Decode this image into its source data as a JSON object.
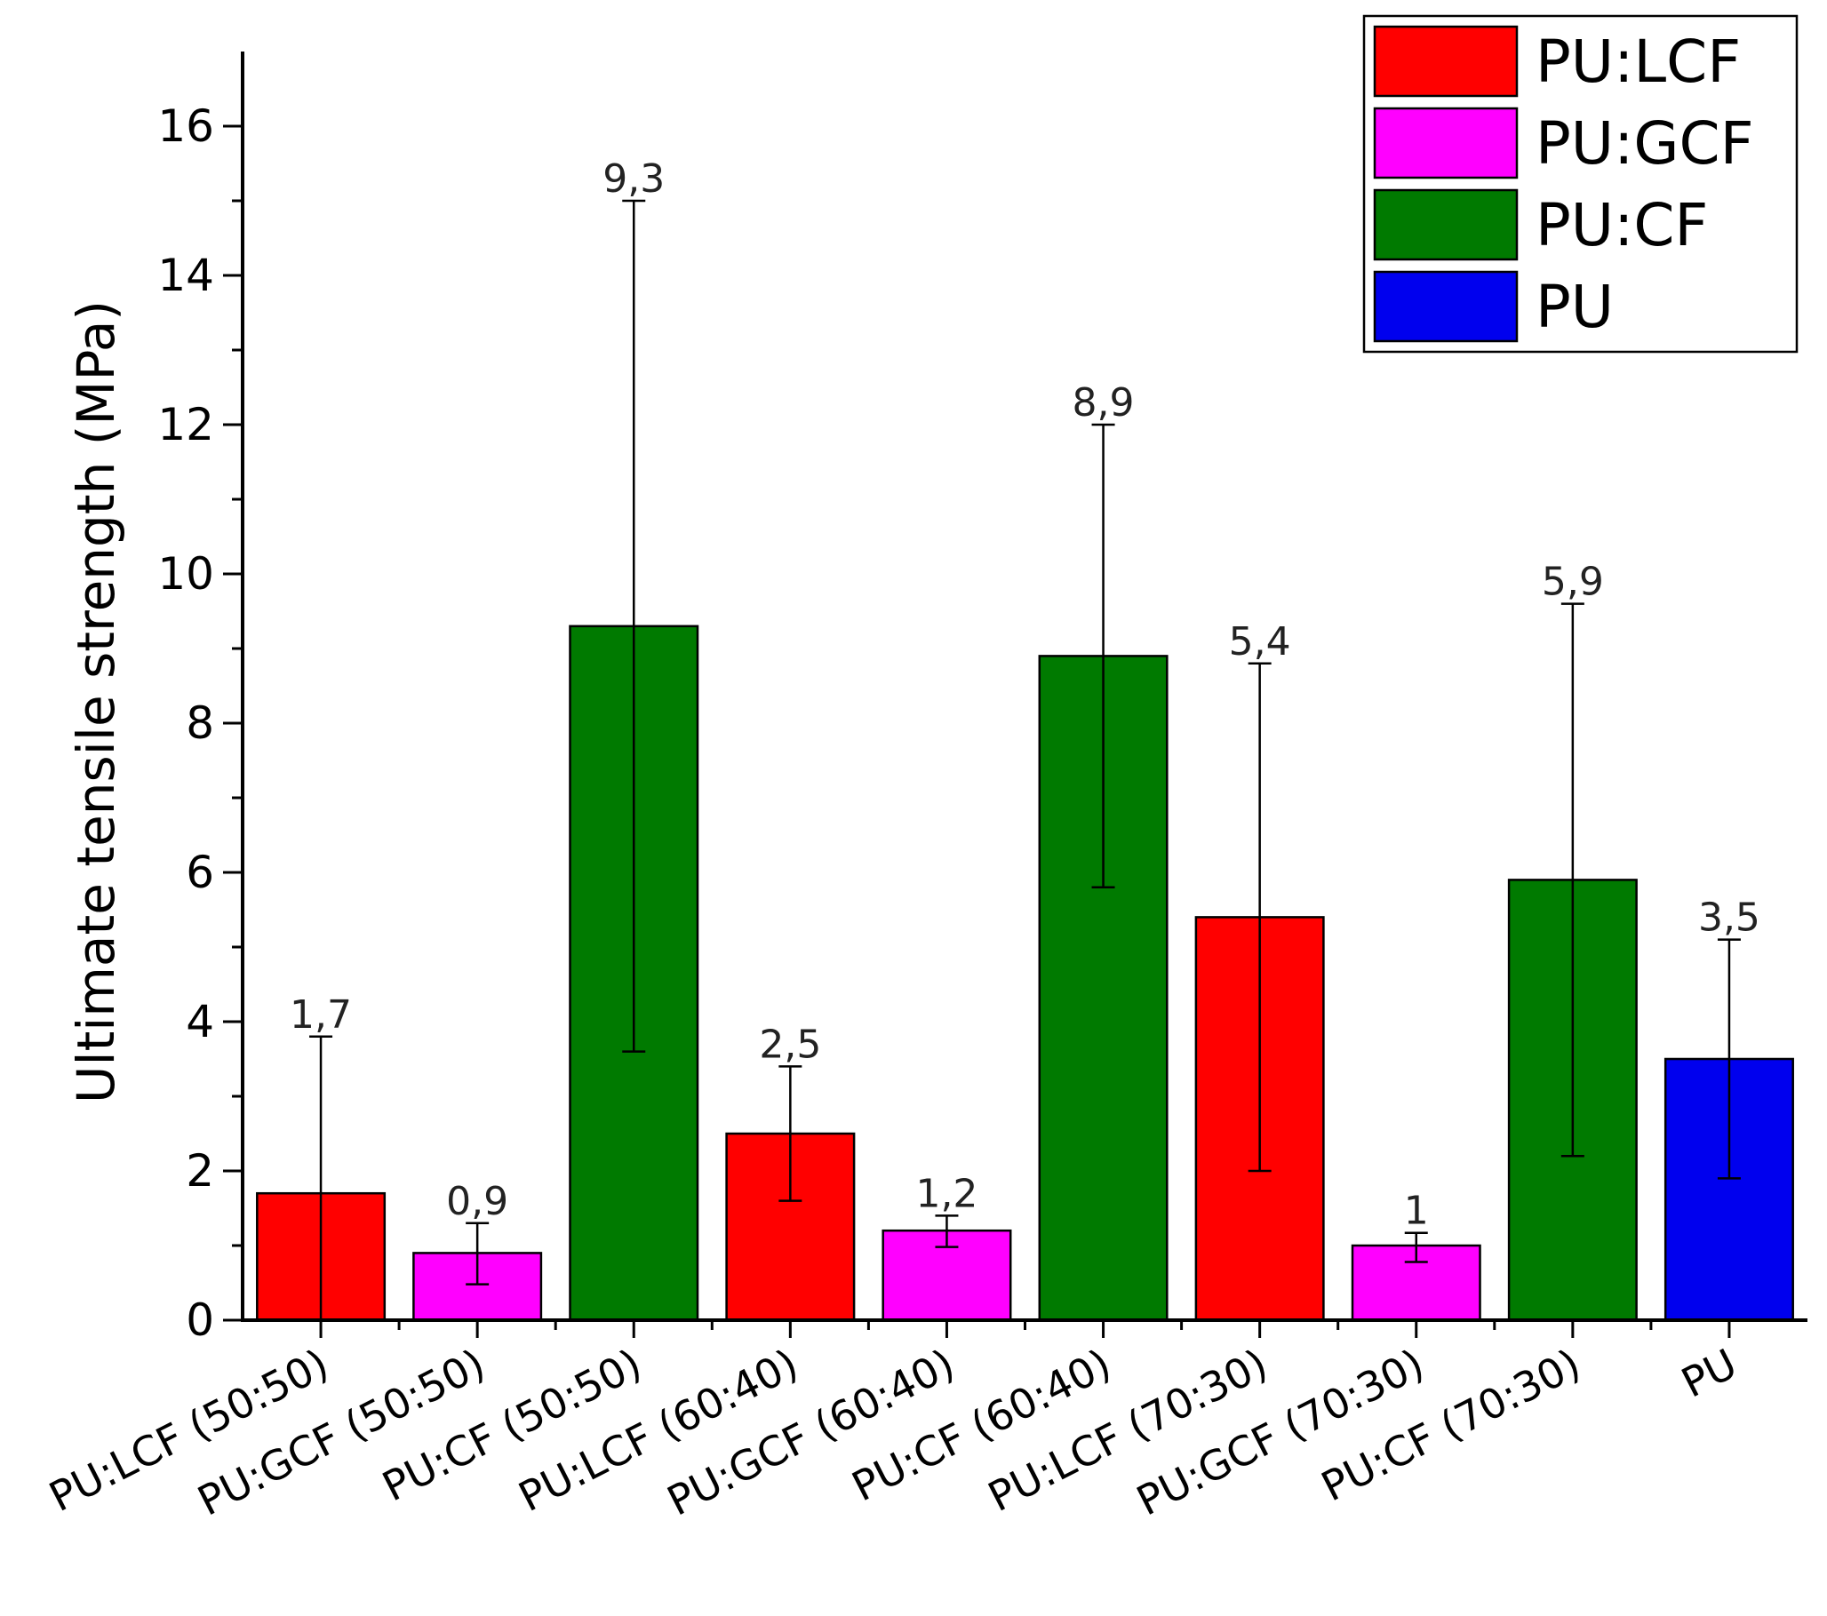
{
  "chart_data": {
    "type": "bar",
    "title": "",
    "xlabel": "",
    "ylabel": "Ultimate tensile strength (MPa)",
    "ylim": [
      0,
      17
    ],
    "yticks": [
      0,
      2,
      4,
      6,
      8,
      10,
      12,
      14,
      16
    ],
    "grid": false,
    "legend_position": "top-right",
    "categories": [
      "PU:LCF (50:50)",
      "PU:GCF (50:50)",
      "PU:CF (50:50)",
      "PU:LCF (60:40)",
      "PU:GCF (60:40)",
      "PU:CF (60:40)",
      "PU:LCF (70:30)",
      "PU:GCF (70:30)",
      "PU:CF (70:30)",
      "PU"
    ],
    "values": [
      1.7,
      0.9,
      9.3,
      2.5,
      1.2,
      8.9,
      5.4,
      1.0,
      5.9,
      3.5
    ],
    "data_labels": [
      "1,7",
      "0,9",
      "9,3",
      "2,5",
      "1,2",
      "8,9",
      "5,4",
      "1",
      "5,9",
      "3,5"
    ],
    "error_low": [
      0.0,
      0.48,
      3.6,
      1.6,
      0.98,
      5.8,
      2.0,
      0.78,
      2.2,
      1.9
    ],
    "error_high": [
      3.8,
      1.3,
      15.0,
      3.4,
      1.4,
      12.0,
      8.8,
      1.17,
      9.6,
      5.1
    ],
    "series_index": [
      0,
      1,
      2,
      0,
      1,
      2,
      0,
      1,
      2,
      3
    ],
    "series": [
      {
        "name": "PU:LCF",
        "color": "#ff0000"
      },
      {
        "name": "PU:GCF",
        "color": "#ff00ff"
      },
      {
        "name": "PU:CF",
        "color": "#007a00"
      },
      {
        "name": "PU",
        "color": "#0000ee"
      }
    ]
  }
}
